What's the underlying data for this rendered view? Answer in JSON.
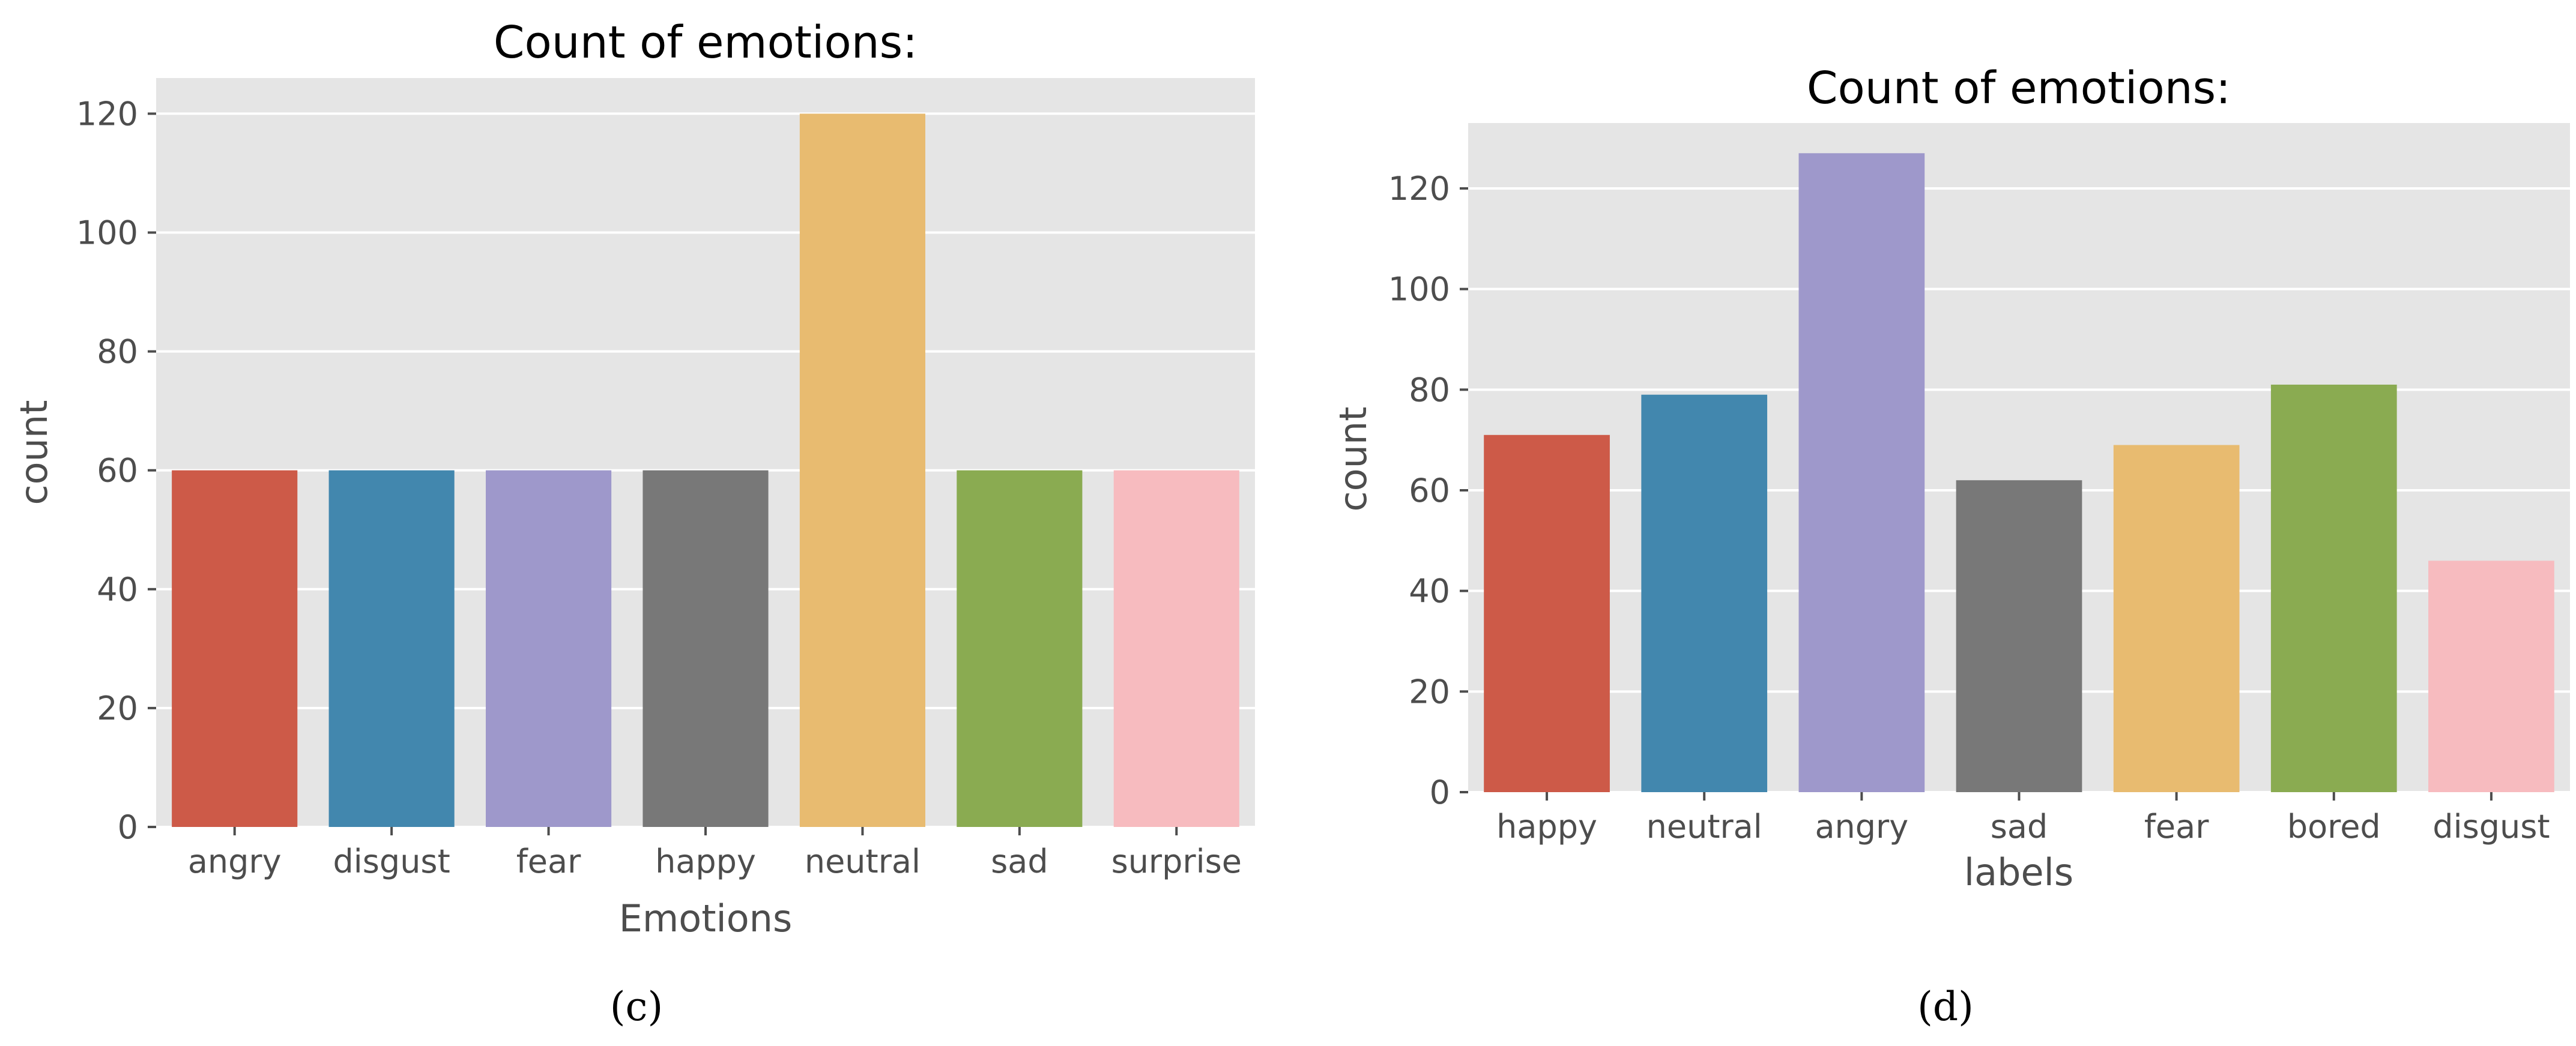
{
  "chart_data": [
    {
      "panel": "c",
      "type": "bar",
      "title": "Count of emotions:",
      "xlabel": "Emotions",
      "ylabel": "count",
      "categories": [
        "angry",
        "disgust",
        "fear",
        "happy",
        "neutral",
        "sad",
        "surprise"
      ],
      "values": [
        60,
        60,
        60,
        60,
        120,
        60,
        60
      ],
      "colors": [
        "#cd5a48",
        "#4287ae",
        "#9e98cb",
        "#787878",
        "#e8bb70",
        "#8aab51",
        "#f7bbbf"
      ],
      "ylim": [
        0,
        126
      ],
      "yticks": [
        0,
        20,
        40,
        60,
        80,
        100,
        120
      ],
      "grid": true,
      "caption": "(c)"
    },
    {
      "panel": "d",
      "type": "bar",
      "title": "Count of emotions:",
      "xlabel": "labels",
      "ylabel": "count",
      "categories": [
        "happy",
        "neutral",
        "angry",
        "sad",
        "fear",
        "bored",
        "disgust"
      ],
      "values": [
        71,
        79,
        127,
        62,
        69,
        81,
        46
      ],
      "colors": [
        "#cd5a48",
        "#4287ae",
        "#9e98cb",
        "#787878",
        "#e8bb70",
        "#8aab51",
        "#f7bbbf"
      ],
      "ylim": [
        0,
        133
      ],
      "yticks": [
        0,
        20,
        40,
        60,
        80,
        100,
        120
      ],
      "grid": true,
      "caption": "(d)"
    }
  ],
  "style": {
    "panel_bg": "#e5e5e5",
    "grid_color": "#ffffff",
    "tick_color": "#4d4d4d"
  }
}
